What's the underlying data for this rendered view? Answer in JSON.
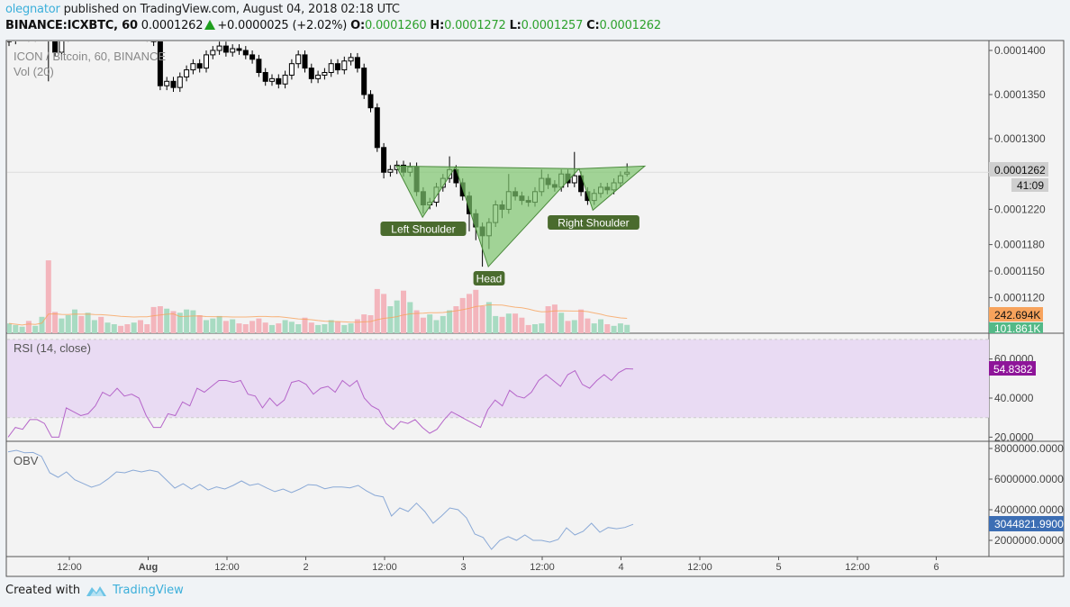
{
  "header": {
    "author": "olegnator",
    "published_text": "published on TradingView.com, August 04, 2018 02:18 UTC",
    "symbol": "BINANCE:ICXBTC, 60",
    "last_price": "0.0001262",
    "change": "+0.0000025 (+2.02%)",
    "o_label": "O:",
    "o": "0.0001260",
    "h_label": "H:",
    "h": "0.0001272",
    "l_label": "L:",
    "l": "0.0001257",
    "c_label": "C:",
    "c": "0.0001262"
  },
  "legend": {
    "main": "ICON / Bitcoin, 60, BINANCE",
    "volume": "Vol (20)",
    "rsi": "RSI (14, close)",
    "obv": "OBV"
  },
  "axis_badges": {
    "price": "0.0001262",
    "countdown": "41:09",
    "vol_ma": "242.694K",
    "volume": "101.861K",
    "rsi": "54.8382",
    "obv": "3044821.9900"
  },
  "colors": {
    "up_volume": "#a8dbc2",
    "down_volume": "#f3b5bc",
    "vol_ma": "#f7a35c",
    "vol_badge": "#53b987",
    "rsi_line": "#b565c9",
    "rsi_band": "#e9dbf3",
    "rsi_badge": "#8e1599",
    "obv_line": "#8aa9d6",
    "obv_badge": "#3c6eb4",
    "pattern_fill": "#7dc46d",
    "pattern_stroke": "#4b8a3c",
    "pattern_label": "#4a6b2e"
  },
  "footer": {
    "created_with": "Created with",
    "brand": "TradingView"
  },
  "chart_data": {
    "type": "candlestick",
    "price_ticks": [
      0.00014,
      0.000135,
      0.00013,
      0.000122,
      0.000118,
      0.000115,
      0.000112
    ],
    "price_tick_labels": [
      "0.0001400",
      "0.0001350",
      "0.0001300",
      "0.0001220",
      "0.0001180",
      "0.0001150",
      "0.0001120"
    ],
    "rsi_ticks": [
      "60.0000",
      "40.0000",
      "20.0000"
    ],
    "rsi_band": [
      30,
      70
    ],
    "obv_ticks": [
      "8000000.0000",
      "6000000.0000",
      "4000000.0000",
      "2000000.0000"
    ],
    "time_labels": [
      "12:00",
      "Aug",
      "12:00",
      "2",
      "12:00",
      "3",
      "12:00",
      "4",
      "12:00",
      "5",
      "12:00",
      "6"
    ],
    "open": [
      0.000141,
      0.0001412,
      0.0001418,
      0.0001422,
      0.0001415,
      0.000142,
      0.0001425,
      0.0001418,
      0.0001398,
      0.0001415,
      0.000142,
      0.0001425,
      0.0001418,
      0.0001422,
      0.0001428,
      0.000142,
      0.0001425,
      0.000143,
      0.0001422,
      0.0001418,
      0.0001425,
      0.000142,
      0.0001415,
      0.000141,
      0.000136,
      0.0001365,
      0.0001358,
      0.000137,
      0.0001378,
      0.0001385,
      0.000138,
      0.0001395,
      0.00014,
      0.0001405,
      0.0001398,
      0.0001402,
      0.00014,
      0.0001395,
      0.000139,
      0.0001375,
      0.0001365,
      0.0001368,
      0.0001362,
      0.0001372,
      0.0001385,
      0.0001395,
      0.000138,
      0.0001368,
      0.0001372,
      0.0001375,
      0.0001385,
      0.0001378,
      0.0001388,
      0.0001392,
      0.000138,
      0.000135,
      0.0001335,
      0.000129,
      0.0001262,
      0.0001265,
      0.000127,
      0.0001262,
      0.0001268,
      0.000124,
      0.0001225,
      0.0001228,
      0.0001245,
      0.0001255,
      0.0001265,
      0.000125,
      0.0001235,
      0.0001215,
      0.00012,
      0.000119,
      0.0001205,
      0.0001225,
      0.000122,
      0.000124,
      0.0001235,
      0.000123,
      0.0001228,
      0.000124,
      0.0001255,
      0.0001248,
      0.0001245,
      0.000126,
      0.000125,
      0.0001258,
      0.000124,
      0.000123,
      0.0001238,
      0.0001245,
      0.0001242,
      0.000125,
      0.000126
    ],
    "high": [
      0.0001417,
      0.0001423,
      0.0001427,
      0.0001427,
      0.0001425,
      0.000143,
      0.000143,
      0.0001423,
      0.000142,
      0.0001425,
      0.000143,
      0.000143,
      0.0001427,
      0.0001433,
      0.0001433,
      0.000143,
      0.0001435,
      0.0001435,
      0.0001427,
      0.000143,
      0.000143,
      0.0001425,
      0.000142,
      0.0001415,
      0.000137,
      0.000137,
      0.0001375,
      0.0001383,
      0.000139,
      0.000139,
      0.00014,
      0.0001405,
      0.000141,
      0.000141,
      0.0001407,
      0.0001407,
      0.0001405,
      0.00014,
      0.0001395,
      0.000138,
      0.0001373,
      0.0001373,
      0.0001377,
      0.000139,
      0.00014,
      0.00014,
      0.0001385,
      0.0001377,
      0.000138,
      0.000139,
      0.000139,
      0.0001393,
      0.0001397,
      0.0001397,
      0.0001385,
      0.0001355,
      0.000134,
      0.0001295,
      0.000127,
      0.0001275,
      0.0001275,
      0.0001273,
      0.0001273,
      0.0001245,
      0.0001233,
      0.000125,
      0.000126,
      0.000128,
      0.000127,
      0.0001255,
      0.000124,
      0.000122,
      0.0001205,
      0.000121,
      0.000123,
      0.000123,
      0.000126,
      0.0001245,
      0.000124,
      0.0001235,
      0.0001245,
      0.0001265,
      0.000126,
      0.0001253,
      0.0001265,
      0.0001265,
      0.0001285,
      0.0001263,
      0.0001245,
      0.0001243,
      0.000125,
      0.000125,
      0.0001255,
      0.0001263,
      0.0001272
    ],
    "low": [
      0.0001405,
      0.0001407,
      0.0001413,
      0.000141,
      0.000141,
      0.0001415,
      0.0001365,
      0.0001393,
      0.0001393,
      0.000141,
      0.0001415,
      0.0001413,
      0.0001413,
      0.0001417,
      0.0001415,
      0.0001415,
      0.000142,
      0.0001417,
      0.0001413,
      0.0001413,
      0.0001415,
      0.000141,
      0.0001405,
      0.0001355,
      0.0001355,
      0.0001353,
      0.0001353,
      0.0001365,
      0.0001373,
      0.0001375,
      0.0001375,
      0.000139,
      0.0001395,
      0.0001393,
      0.0001393,
      0.0001395,
      0.000139,
      0.0001385,
      0.000137,
      0.000136,
      0.000136,
      0.0001357,
      0.0001357,
      0.0001367,
      0.000138,
      0.0001375,
      0.0001363,
      0.0001363,
      0.0001367,
      0.000137,
      0.0001373,
      0.0001373,
      0.0001383,
      0.0001375,
      0.0001345,
      0.000133,
      0.0001285,
      0.0001255,
      0.0001257,
      0.000126,
      0.0001257,
      0.0001257,
      0.0001235,
      0.0001215,
      0.000122,
      0.0001223,
      0.000124,
      0.000125,
      0.0001245,
      0.000123,
      0.0001195,
      0.0001185,
      0.0001155,
      0.0001175,
      0.00012,
      0.000121,
      0.0001215,
      0.000123,
      0.0001225,
      0.0001223,
      0.0001223,
      0.0001235,
      0.0001243,
      0.000124,
      0.000124,
      0.0001245,
      0.0001245,
      0.0001235,
      0.0001225,
      0.0001225,
      0.0001233,
      0.0001237,
      0.0001237,
      0.0001245,
      0.0001257
    ],
    "close": [
      0.0001412,
      0.0001418,
      0.0001422,
      0.0001415,
      0.000142,
      0.0001425,
      0.0001418,
      0.0001398,
      0.0001415,
      0.000142,
      0.0001425,
      0.0001418,
      0.0001422,
      0.0001428,
      0.000142,
      0.0001425,
      0.000143,
      0.0001422,
      0.0001418,
      0.0001425,
      0.000142,
      0.0001415,
      0.000141,
      0.000136,
      0.0001365,
      0.0001358,
      0.000137,
      0.0001378,
      0.0001385,
      0.000138,
      0.0001395,
      0.00014,
      0.0001405,
      0.0001398,
      0.0001402,
      0.00014,
      0.0001395,
      0.000139,
      0.0001375,
      0.0001365,
      0.0001368,
      0.0001362,
      0.0001372,
      0.0001385,
      0.0001395,
      0.000138,
      0.0001368,
      0.0001372,
      0.0001375,
      0.0001385,
      0.0001378,
      0.0001388,
      0.0001392,
      0.000138,
      0.000135,
      0.0001335,
      0.000129,
      0.0001262,
      0.0001265,
      0.000127,
      0.0001262,
      0.0001268,
      0.000124,
      0.0001225,
      0.0001228,
      0.0001245,
      0.0001255,
      0.0001265,
      0.000125,
      0.0001235,
      0.0001215,
      0.00012,
      0.000119,
      0.0001205,
      0.0001225,
      0.000122,
      0.000124,
      0.0001235,
      0.000123,
      0.0001228,
      0.000124,
      0.0001255,
      0.0001248,
      0.0001245,
      0.000126,
      0.000125,
      0.0001258,
      0.000124,
      0.000123,
      0.0001238,
      0.0001245,
      0.0001242,
      0.000125,
      0.0001258,
      0.0001262
    ],
    "volume_k": [
      120,
      100,
      80,
      150,
      90,
      200,
      890,
      260,
      180,
      220,
      290,
      210,
      250,
      160,
      200,
      130,
      110,
      90,
      110,
      130,
      160,
      110,
      320,
      330,
      300,
      270,
      250,
      290,
      280,
      220,
      160,
      180,
      210,
      150,
      170,
      120,
      110,
      150,
      180,
      130,
      100,
      120,
      160,
      140,
      110,
      190,
      130,
      100,
      110,
      160,
      140,
      100,
      120,
      170,
      230,
      220,
      540,
      480,
      330,
      400,
      520,
      380,
      280,
      190,
      230,
      160,
      210,
      280,
      330,
      430,
      480,
      530,
      330,
      380,
      210,
      200,
      240,
      240,
      190,
      100,
      110,
      120,
      330,
      350,
      250,
      150,
      160,
      290,
      180,
      120,
      170,
      110,
      90,
      120,
      101.861
    ],
    "rsi": [
      20,
      25,
      24,
      29,
      29,
      27,
      20,
      20,
      35,
      33,
      31,
      32,
      36,
      43,
      41,
      45,
      41,
      42,
      40,
      31,
      25,
      25,
      32,
      31,
      38,
      36,
      45,
      43,
      46,
      49,
      49,
      48,
      49,
      42,
      41,
      35,
      40,
      36,
      39,
      48,
      49,
      47,
      42,
      45,
      46,
      43,
      49,
      46,
      49,
      40,
      36,
      34,
      27,
      24,
      28,
      27,
      29,
      25,
      22,
      24,
      29,
      33,
      31,
      29,
      27,
      25,
      34,
      39,
      36,
      44,
      41,
      40,
      43,
      49,
      52,
      49,
      46,
      52,
      54,
      47,
      45,
      49,
      52,
      49,
      53,
      55,
      54.8382
    ],
    "obv": [
      7780000,
      7880000,
      7720000,
      7740000,
      7490000,
      6410000,
      6120000,
      6470000,
      5960000,
      5720000,
      5470000,
      5640000,
      6020000,
      6470000,
      6410000,
      6590000,
      6470000,
      6590000,
      6470000,
      5940000,
      5410000,
      5700000,
      5350000,
      5660000,
      5290000,
      5490000,
      5350000,
      5590000,
      5880000,
      5590000,
      5700000,
      5430000,
      5180000,
      5350000,
      5120000,
      5350000,
      5640000,
      5600000,
      5370000,
      5490000,
      5490000,
      5430000,
      5590000,
      5230000,
      4940000,
      4840000,
      3590000,
      4120000,
      3880000,
      4430000,
      3880000,
      3120000,
      3590000,
      4120000,
      4000000,
      3470000,
      2410000,
      2190000,
      1410000,
      2000000,
      2250000,
      2000000,
      2350000,
      2000000,
      2000000,
      1880000,
      2060000,
      2820000,
      2350000,
      2590000,
      3120000,
      2530000,
      2840000,
      2760000,
      2840000,
      3044821.99
    ],
    "annotations": [
      {
        "label": "Left Shoulder",
        "points": [
          [
            58.9,
            0.0001269
          ],
          [
            62.9,
            0.0001211
          ],
          [
            67.9,
            0.0001268
          ]
        ]
      },
      {
        "label": "Head",
        "points": [
          [
            67.9,
            0.0001268
          ],
          [
            72.9,
            0.0001155
          ],
          [
            86.7,
            0.0001266
          ]
        ]
      },
      {
        "label": "Right Shoulder",
        "points": [
          [
            86.7,
            0.0001266
          ],
          [
            88.8,
            0.0001219
          ],
          [
            96.7,
            0.0001269
          ]
        ]
      }
    ]
  }
}
